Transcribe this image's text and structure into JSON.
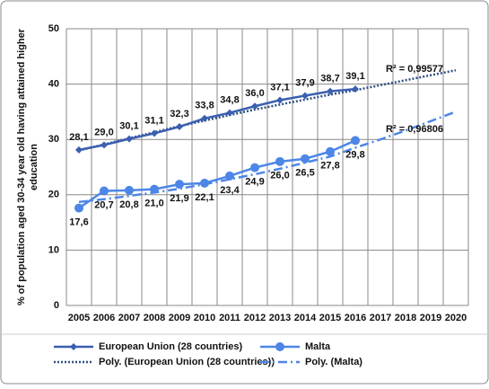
{
  "chart_data": {
    "type": "line",
    "ylabel": [
      "% of population aged 30-34 year old having attained higher",
      "education"
    ],
    "categories": [
      "2005",
      "2006",
      "2007",
      "2008",
      "2009",
      "2010",
      "2011",
      "2012",
      "2013",
      "2014",
      "2015",
      "2016",
      "2017",
      "2018",
      "2019",
      "2020"
    ],
    "ylim": [
      0,
      50
    ],
    "yticks": [
      0,
      10,
      20,
      30,
      40,
      50
    ],
    "grid": true,
    "legend": "bottom",
    "series": [
      {
        "name": "European Union (28 countries)",
        "color": "#3b5fb0",
        "marker": "diamond",
        "label_side": "above",
        "values": [
          28.1,
          29.0,
          30.1,
          31.1,
          32.3,
          33.8,
          34.8,
          36.0,
          37.1,
          37.9,
          38.7,
          39.1,
          null,
          null,
          null,
          null
        ],
        "value_labels": [
          "28,1",
          "29,0",
          "30,1",
          "31,1",
          "32,3",
          "33,8",
          "34,8",
          "36,0",
          "37,1",
          "37,9",
          "38,7",
          "39,1",
          null,
          null,
          null,
          null
        ]
      },
      {
        "name": "Malta",
        "color": "#4d86e6",
        "marker": "circle",
        "label_side": "below",
        "values": [
          17.6,
          20.7,
          20.8,
          21.0,
          21.9,
          22.1,
          23.4,
          24.9,
          26.0,
          26.5,
          27.8,
          29.8,
          null,
          null,
          null,
          null
        ],
        "value_labels": [
          "17,6",
          "20,7",
          "20,8",
          "21,0",
          "21,9",
          "22,1",
          "23,4",
          "24,9",
          "26,0",
          "26,5",
          "27,8",
          "29,8",
          null,
          null,
          null,
          null
        ]
      },
      {
        "name": "Poly.  (European Union (28 countries))",
        "color": "#2f4f80",
        "style": "dotted",
        "values": [
          28.0,
          29.1,
          30.2,
          31.3,
          32.4,
          33.4,
          34.4,
          35.4,
          36.3,
          37.2,
          38.1,
          38.9,
          39.8,
          40.7,
          41.6,
          42.5
        ]
      },
      {
        "name": "Poly.  (Malta)",
        "color": "#4d86e6",
        "style": "dashdot",
        "values": [
          18.7,
          19.2,
          19.8,
          20.4,
          21.1,
          21.9,
          22.8,
          23.7,
          24.7,
          25.8,
          26.9,
          28.5,
          30.0,
          31.6,
          33.3,
          35.0
        ]
      }
    ],
    "annotations": [
      {
        "text": "R² = 0,99577",
        "x": "2018",
        "y": 42.7
      },
      {
        "text": "R² = 0,96806",
        "x": "2018",
        "y": 31.8
      }
    ]
  }
}
